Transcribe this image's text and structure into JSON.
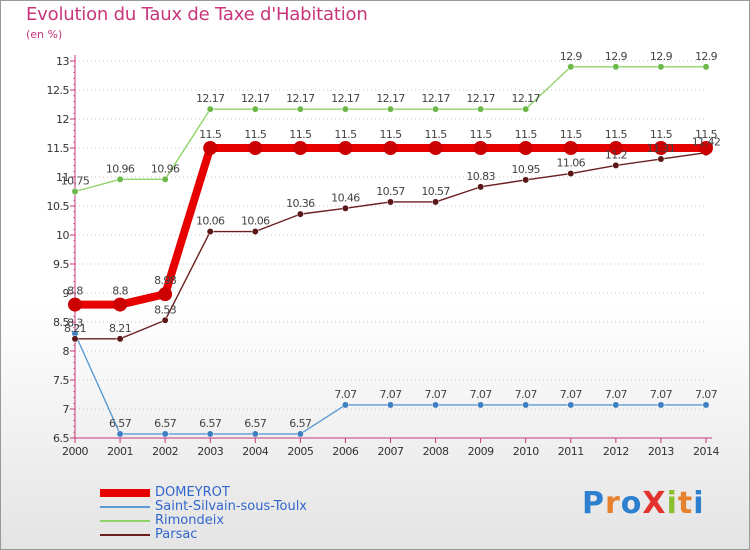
{
  "title": "Evolution du Taux de Taxe d'Habitation",
  "subtitle": "(en %)",
  "logo": {
    "text": "ProXiti",
    "letter_colors": [
      "#2f7fd0",
      "#e8812d",
      "#2f7fd0",
      "#e2322b",
      "#8abf2f",
      "#e8812d",
      "#2f7fd0"
    ]
  },
  "chart_data": {
    "type": "line",
    "x": [
      2000,
      2001,
      2002,
      2003,
      2004,
      2005,
      2006,
      2007,
      2008,
      2009,
      2010,
      2011,
      2012,
      2013,
      2014
    ],
    "ylim": [
      6.5,
      13
    ],
    "yticks": [
      6.5,
      7,
      7.5,
      8,
      8.5,
      9,
      9.5,
      10,
      10.5,
      11,
      11.5,
      12,
      12.5,
      13
    ],
    "ytick_labels": [
      "6.5",
      "7",
      "7.5",
      "8",
      "8.5",
      "9",
      "9.5",
      "10",
      "10.5",
      "11",
      "11.5",
      "12",
      "12.5",
      "13"
    ],
    "grid": "horizontal dotted",
    "legend_position": "bottom-left",
    "series": [
      {
        "name": "DOMEYROT",
        "color": "#e60000",
        "values": [
          8.8,
          8.8,
          8.98,
          11.5,
          11.5,
          11.5,
          11.5,
          11.5,
          11.5,
          11.5,
          11.5,
          11.5,
          11.5,
          11.5,
          11.5
        ],
        "labels": [
          "8.8",
          "8.8",
          "8.98",
          "11.5",
          "11.5",
          "11.5",
          "11.5",
          "11.5",
          "11.5",
          "11.5",
          "11.5",
          "11.5",
          "11.5",
          "11.5",
          "11.5"
        ]
      },
      {
        "name": "Saint-Silvain-sous-Toulx",
        "color": "#5a9bd5",
        "values": [
          8.3,
          6.57,
          6.57,
          6.57,
          6.57,
          6.57,
          7.07,
          7.07,
          7.07,
          7.07,
          7.07,
          7.07,
          7.07,
          7.07,
          7.07
        ],
        "labels": [
          "8.3",
          "6.57",
          "6.57",
          "6.57",
          "6.57",
          "6.57",
          "7.07",
          "7.07",
          "7.07",
          "7.07",
          "7.07",
          "7.07",
          "7.07",
          "7.07",
          "7.07"
        ]
      },
      {
        "name": "Rimondeix",
        "color": "#8fd36a",
        "values": [
          10.75,
          10.96,
          10.96,
          12.17,
          12.17,
          12.17,
          12.17,
          12.17,
          12.17,
          12.17,
          12.17,
          12.9,
          12.9,
          12.9,
          12.9
        ],
        "labels": [
          "10.75",
          "10.96",
          "10.96",
          "12.17",
          "12.17",
          "12.17",
          "12.17",
          "12.17",
          "12.17",
          "12.17",
          "12.17",
          "12.9",
          "12.9",
          "12.9",
          "12.9"
        ]
      },
      {
        "name": "Parsac",
        "color": "#6b1f1f",
        "values": [
          8.21,
          8.21,
          8.53,
          10.06,
          10.06,
          10.36,
          10.46,
          10.57,
          10.57,
          10.83,
          10.95,
          11.06,
          11.2,
          11.31,
          11.42
        ],
        "labels": [
          "8.21",
          "8.21",
          "8.53",
          "10.06",
          "10.06",
          "10.36",
          "10.46",
          "10.57",
          "10.57",
          "10.83",
          "10.95",
          "11.06",
          "11.2",
          "11.31",
          "11.42"
        ]
      }
    ]
  }
}
